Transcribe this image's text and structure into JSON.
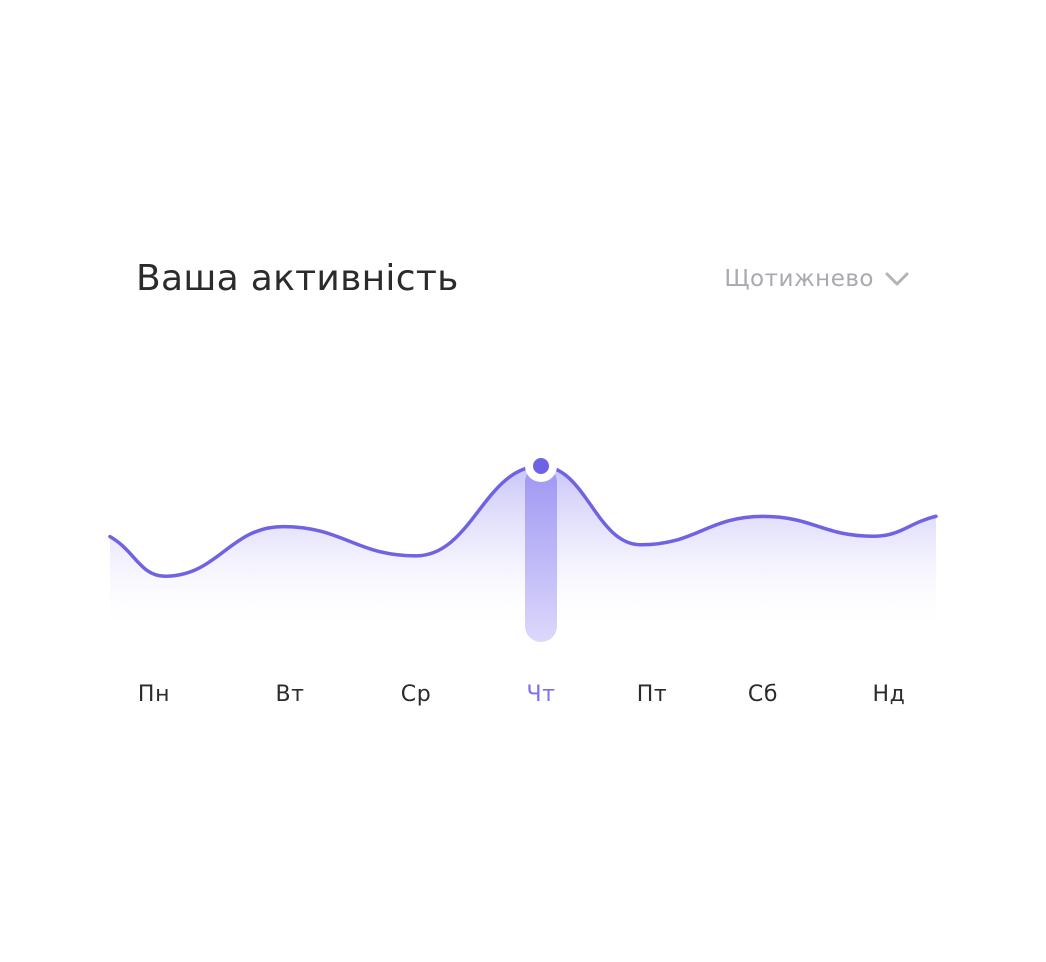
{
  "header": {
    "title": "Ваша активність",
    "period_label": "Щотижнево",
    "period_icon": "chevron-down-icon"
  },
  "colors": {
    "accent": "#6f63e3",
    "accent_light": "#d4cffa",
    "text": "#2b2b2b",
    "muted": "#a9a9ae"
  },
  "chart_data": {
    "type": "area",
    "categories": [
      "Пн",
      "Вт",
      "Ср",
      "Чт",
      "Пт",
      "Сб",
      "Нд"
    ],
    "selected_category": "Чт",
    "values": [
      0.78,
      4.19,
      2.18,
      8.35,
      2.94,
      4.89,
      3.53
    ],
    "edge_values": {
      "start": 3.5,
      "end": 4.9
    },
    "ylim": [
      -3.6,
      10
    ],
    "grid": false,
    "legend": "none"
  }
}
